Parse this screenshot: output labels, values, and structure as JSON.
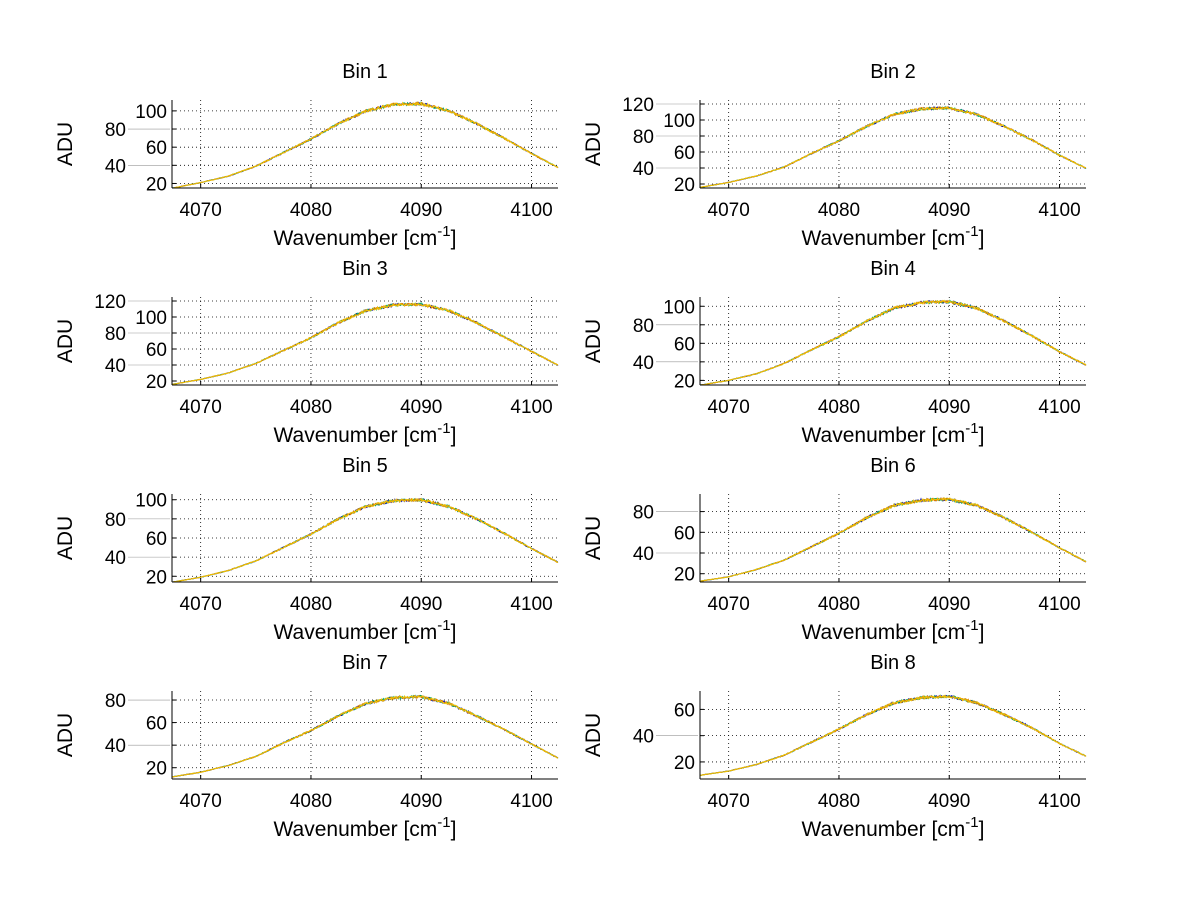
{
  "chart_data": [
    {
      "type": "line",
      "title": "Bin 1",
      "xlabel": "Wavenumber [cm",
      "xlabel_sup": "-1",
      "xlabel_end": "]",
      "ylabel": "ADU",
      "xlim": [
        4067.4,
        4102.4
      ],
      "ylim": [
        15,
        112
      ],
      "xticks": [
        4070,
        4080,
        4090,
        4100
      ],
      "yticks": [
        20,
        40,
        60,
        80,
        100
      ],
      "grid": true,
      "x": [
        4067.5,
        4070,
        4072.5,
        4075,
        4077.5,
        4080,
        4082.5,
        4085,
        4087.5,
        4090,
        4092.5,
        4095,
        4097.5,
        4100,
        4102.5
      ],
      "values": [
        15,
        21,
        28,
        39,
        54,
        69,
        86,
        100,
        107,
        108,
        100,
        86,
        70,
        53,
        37
      ]
    },
    {
      "type": "line",
      "title": "Bin 2",
      "xlabel": "Wavenumber [cm",
      "xlabel_sup": "-1",
      "xlabel_end": "]",
      "ylabel": "ADU",
      "xlim": [
        4067.4,
        4102.4
      ],
      "ylim": [
        15,
        125
      ],
      "xticks": [
        4070,
        4080,
        4090,
        4100
      ],
      "yticks": [
        20,
        40,
        60,
        80,
        100,
        120
      ],
      "grid": true,
      "x": [
        4067.5,
        4070,
        4072.5,
        4075,
        4077.5,
        4080,
        4082.5,
        4085,
        4087.5,
        4090,
        4092.5,
        4095,
        4097.5,
        4100,
        4102.5
      ],
      "values": [
        16,
        22,
        30,
        41,
        58,
        74,
        92,
        107,
        114,
        115,
        107,
        92,
        75,
        56,
        39
      ]
    },
    {
      "type": "line",
      "title": "Bin 3",
      "xlabel": "Wavenumber [cm",
      "xlabel_sup": "-1",
      "xlabel_end": "]",
      "ylabel": "ADU",
      "xlim": [
        4067.4,
        4102.4
      ],
      "ylim": [
        15,
        125
      ],
      "xticks": [
        4070,
        4080,
        4090,
        4100
      ],
      "yticks": [
        20,
        40,
        60,
        80,
        100,
        120
      ],
      "grid": true,
      "x": [
        4067.5,
        4070,
        4072.5,
        4075,
        4077.5,
        4080,
        4082.5,
        4085,
        4087.5,
        4090,
        4092.5,
        4095,
        4097.5,
        4100,
        4102.5
      ],
      "values": [
        16,
        22,
        30,
        42,
        58,
        74,
        93,
        108,
        115,
        116,
        108,
        93,
        75,
        57,
        39
      ]
    },
    {
      "type": "line",
      "title": "Bin 4",
      "xlabel": "Wavenumber [cm",
      "xlabel_sup": "-1",
      "xlabel_end": "]",
      "ylabel": "ADU",
      "xlim": [
        4067.4,
        4102.4
      ],
      "ylim": [
        15,
        110
      ],
      "xticks": [
        4070,
        4080,
        4090,
        4100
      ],
      "yticks": [
        20,
        40,
        60,
        80,
        100
      ],
      "grid": true,
      "x": [
        4067.5,
        4070,
        4072.5,
        4075,
        4077.5,
        4080,
        4082.5,
        4085,
        4087.5,
        4090,
        4092.5,
        4095,
        4097.5,
        4100,
        4102.5
      ],
      "values": [
        15,
        20,
        27,
        38,
        53,
        67,
        84,
        98,
        104,
        105,
        98,
        84,
        68,
        51,
        36
      ]
    },
    {
      "type": "line",
      "title": "Bin 5",
      "xlabel": "Wavenumber [cm",
      "xlabel_sup": "-1",
      "xlabel_end": "]",
      "ylabel": "ADU",
      "xlim": [
        4067.4,
        4102.4
      ],
      "ylim": [
        14,
        106
      ],
      "xticks": [
        4070,
        4080,
        4090,
        4100
      ],
      "yticks": [
        20,
        40,
        60,
        80,
        100
      ],
      "grid": true,
      "x": [
        4067.5,
        4070,
        4072.5,
        4075,
        4077.5,
        4080,
        4082.5,
        4085,
        4087.5,
        4090,
        4092.5,
        4095,
        4097.5,
        4100,
        4102.5
      ],
      "values": [
        14,
        19,
        26,
        36,
        50,
        64,
        80,
        93,
        99,
        100,
        93,
        80,
        65,
        49,
        34
      ]
    },
    {
      "type": "line",
      "title": "Bin 6",
      "xlabel": "Wavenumber [cm",
      "xlabel_sup": "-1",
      "xlabel_end": "]",
      "ylabel": "ADU",
      "xlim": [
        4067.4,
        4102.4
      ],
      "ylim": [
        12,
        97
      ],
      "xticks": [
        4070,
        4080,
        4090,
        4100
      ],
      "yticks": [
        20,
        40,
        60,
        80
      ],
      "grid": true,
      "x": [
        4067.5,
        4070,
        4072.5,
        4075,
        4077.5,
        4080,
        4082.5,
        4085,
        4087.5,
        4090,
        4092.5,
        4095,
        4097.5,
        4100,
        4102.5
      ],
      "values": [
        13,
        17,
        24,
        33,
        46,
        59,
        74,
        86,
        91,
        92,
        86,
        74,
        60,
        45,
        31
      ]
    },
    {
      "type": "line",
      "title": "Bin 7",
      "xlabel": "Wavenumber [cm",
      "xlabel_sup": "-1",
      "xlabel_end": "]",
      "ylabel": "ADU",
      "xlim": [
        4067.4,
        4102.4
      ],
      "ylim": [
        10,
        88
      ],
      "xticks": [
        4070,
        4080,
        4090,
        4100
      ],
      "yticks": [
        20,
        40,
        60,
        80
      ],
      "grid": true,
      "x": [
        4067.5,
        4070,
        4072.5,
        4075,
        4077.5,
        4080,
        4082.5,
        4085,
        4087.5,
        4090,
        4092.5,
        4095,
        4097.5,
        4100,
        4102.5
      ],
      "values": [
        12,
        16,
        22,
        30,
        42,
        53,
        66,
        77,
        82,
        83,
        77,
        66,
        54,
        41,
        28
      ]
    },
    {
      "type": "line",
      "title": "Bin 8",
      "xlabel": "Wavenumber [cm",
      "xlabel_sup": "-1",
      "xlabel_end": "]",
      "ylabel": "ADU",
      "xlim": [
        4067.4,
        4102.4
      ],
      "ylim": [
        7,
        74
      ],
      "xticks": [
        4070,
        4080,
        4090,
        4100
      ],
      "yticks": [
        20,
        40,
        60
      ],
      "grid": true,
      "x": [
        4067.5,
        4070,
        4072.5,
        4075,
        4077.5,
        4080,
        4082.5,
        4085,
        4087.5,
        4090,
        4092.5,
        4095,
        4097.5,
        4100,
        4102.5
      ],
      "values": [
        10,
        13,
        18,
        25,
        35,
        45,
        56,
        65,
        69,
        70,
        65,
        56,
        46,
        34,
        24
      ]
    }
  ],
  "colors": {
    "series": [
      "#0000aa",
      "#00aa66",
      "#e08000",
      "#f0c000"
    ]
  }
}
